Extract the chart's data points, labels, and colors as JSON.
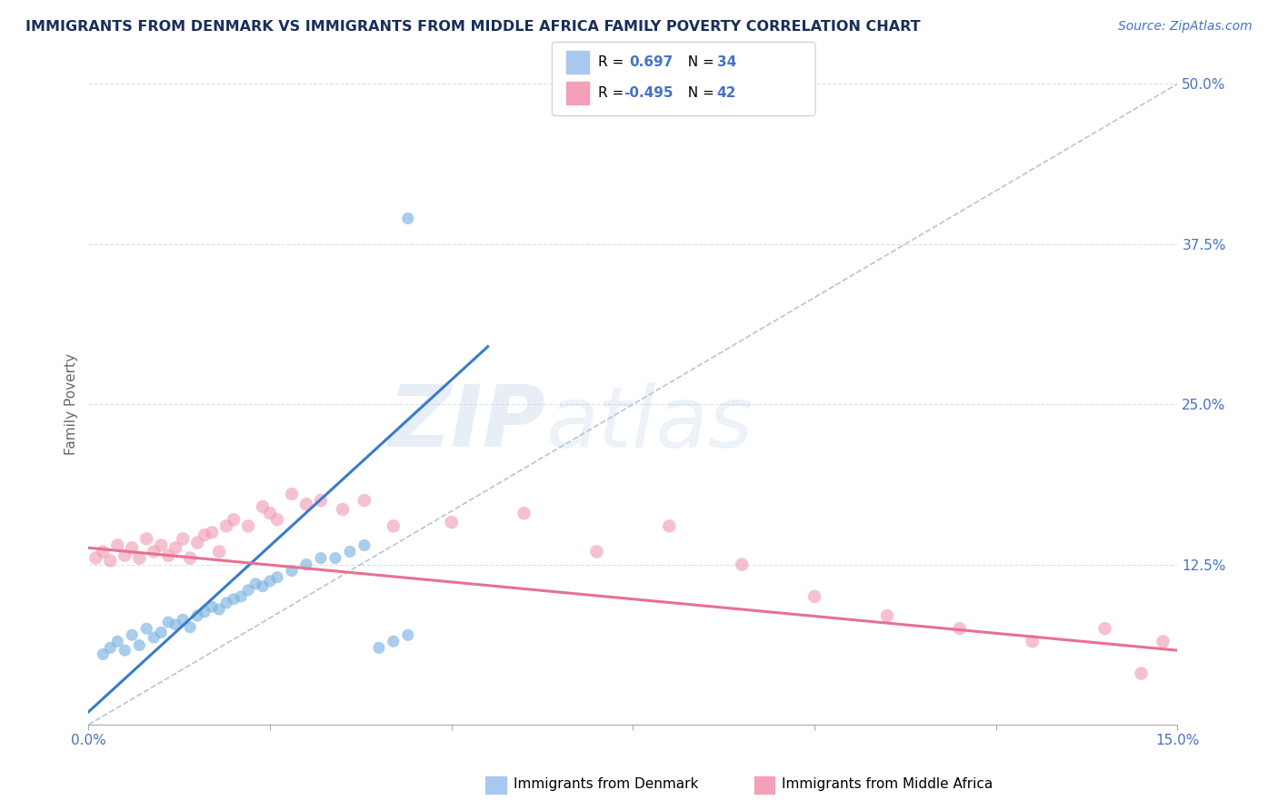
{
  "title": "IMMIGRANTS FROM DENMARK VS IMMIGRANTS FROM MIDDLE AFRICA FAMILY POVERTY CORRELATION CHART",
  "source": "Source: ZipAtlas.com",
  "ylabel": "Family Poverty",
  "xlim": [
    0.0,
    0.15
  ],
  "ylim": [
    0.0,
    0.5
  ],
  "xticks": [
    0.0,
    0.025,
    0.05,
    0.075,
    0.1,
    0.125,
    0.15
  ],
  "xtick_labels": [
    "0.0%",
    "",
    "",
    "",
    "",
    "",
    "15.0%"
  ],
  "yticks_right": [
    0.125,
    0.25,
    0.375,
    0.5
  ],
  "ytick_labels_right": [
    "12.5%",
    "25.0%",
    "37.5%",
    "50.0%"
  ],
  "denmark_scatter_x": [
    0.002,
    0.003,
    0.004,
    0.005,
    0.006,
    0.007,
    0.008,
    0.009,
    0.01,
    0.011,
    0.012,
    0.013,
    0.014,
    0.015,
    0.016,
    0.017,
    0.018,
    0.019,
    0.02,
    0.021,
    0.022,
    0.023,
    0.024,
    0.025,
    0.026,
    0.028,
    0.03,
    0.032,
    0.034,
    0.036,
    0.038,
    0.04,
    0.042,
    0.044
  ],
  "denmark_scatter_y": [
    0.055,
    0.06,
    0.065,
    0.058,
    0.07,
    0.062,
    0.075,
    0.068,
    0.072,
    0.08,
    0.078,
    0.082,
    0.076,
    0.085,
    0.088,
    0.092,
    0.09,
    0.095,
    0.098,
    0.1,
    0.105,
    0.11,
    0.108,
    0.112,
    0.115,
    0.12,
    0.125,
    0.13,
    0.13,
    0.135,
    0.14,
    0.06,
    0.065,
    0.07
  ],
  "africa_scatter_x": [
    0.001,
    0.002,
    0.003,
    0.004,
    0.005,
    0.006,
    0.007,
    0.008,
    0.009,
    0.01,
    0.011,
    0.012,
    0.013,
    0.014,
    0.015,
    0.016,
    0.017,
    0.018,
    0.019,
    0.02,
    0.022,
    0.024,
    0.025,
    0.026,
    0.028,
    0.03,
    0.032,
    0.035,
    0.038,
    0.042,
    0.05,
    0.06,
    0.07,
    0.08,
    0.09,
    0.1,
    0.11,
    0.12,
    0.13,
    0.14,
    0.145,
    0.148
  ],
  "africa_scatter_y": [
    0.13,
    0.135,
    0.128,
    0.14,
    0.132,
    0.138,
    0.13,
    0.145,
    0.135,
    0.14,
    0.132,
    0.138,
    0.145,
    0.13,
    0.142,
    0.148,
    0.15,
    0.135,
    0.155,
    0.16,
    0.155,
    0.17,
    0.165,
    0.16,
    0.18,
    0.172,
    0.175,
    0.168,
    0.175,
    0.155,
    0.158,
    0.165,
    0.135,
    0.155,
    0.125,
    0.1,
    0.085,
    0.075,
    0.065,
    0.075,
    0.04,
    0.065
  ],
  "denmark_outlier_x": [
    0.044
  ],
  "denmark_outlier_y": [
    0.395
  ],
  "denmark_line_x": [
    0.0,
    0.055
  ],
  "denmark_line_y": [
    0.01,
    0.295
  ],
  "africa_line_x": [
    0.0,
    0.15
  ],
  "africa_line_y": [
    0.138,
    0.058
  ],
  "diag_line_x": [
    0.0,
    0.15
  ],
  "diag_line_y": [
    0.0,
    0.5
  ],
  "denmark_color": "#3a7cc7",
  "africa_color": "#e87090",
  "denmark_scatter_color": "#7bb3e0",
  "africa_scatter_color": "#f0a0b8",
  "grid_color": "#d8e0ec",
  "background_color": "#ffffff",
  "watermark": "ZIPatlas",
  "title_color": "#1a2e5a",
  "source_color": "#4472c4",
  "axis_color": "#4472c4"
}
